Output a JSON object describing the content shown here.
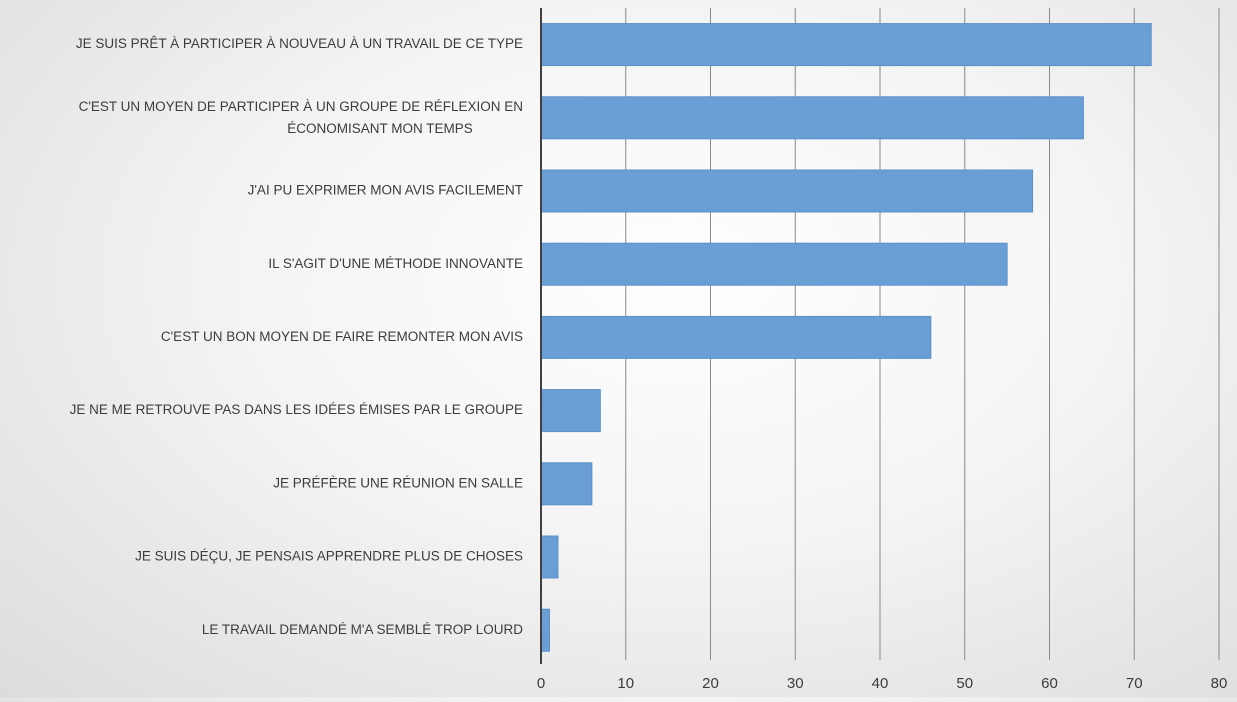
{
  "chart_data": {
    "type": "bar",
    "orientation": "horizontal",
    "categories": [
      "JE SUIS PRÊT À PARTICIPER À NOUVEAU À UN TRAVAIL DE CE TYPE",
      "C'EST UN MOYEN DE PARTICIPER À UN GROUPE DE RÉFLEXION EN ÉCONOMISANT MON TEMPS",
      "J'AI PU EXPRIMER MON AVIS FACILEMENT",
      "IL S'AGIT D'UNE MÉTHODE INNOVANTE",
      "C'EST UN BON MOYEN DE FAIRE REMONTER MON AVIS",
      "JE NE ME RETROUVE PAS DANS LES IDÉES ÉMISES PAR LE GROUPE",
      "JE PRÉFÈRE UNE RÉUNION EN SALLE",
      "JE SUIS DÉÇU, JE PENSAIS APPRENDRE PLUS DE CHOSES",
      "LE TRAVAIL DEMANDÉ M'A SEMBLÉ TROP LOURD"
    ],
    "values": [
      72,
      64,
      58,
      55,
      46,
      7,
      6,
      2,
      1
    ],
    "xlim": [
      0,
      80
    ],
    "xticks": [
      "0",
      "10",
      "20",
      "30",
      "40",
      "50",
      "60",
      "70",
      "80"
    ],
    "title": "",
    "xlabel": "",
    "ylabel": "",
    "grid": true,
    "legend": "none",
    "bar_color": "#6a9fd6",
    "bar_stroke": "#5b8fc9",
    "grid_color": "#8a8a8a",
    "axis_color": "#404040",
    "label_color": "#3c3c3c"
  }
}
